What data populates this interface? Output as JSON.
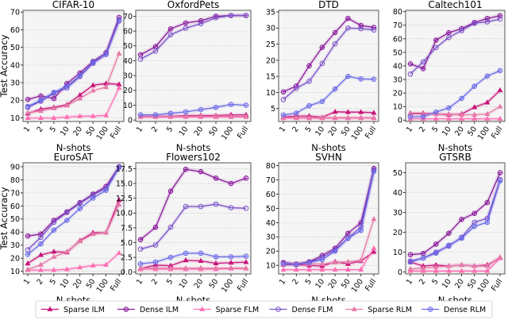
{
  "figure": {
    "xlabel": "N-shots",
    "ylabel": "Test Accuracy",
    "x_categories": [
      "1",
      "2",
      "5",
      "10",
      "20",
      "50",
      "100",
      "Full"
    ]
  },
  "series_style": [
    {
      "name": "Sparse ILM",
      "color": "#c8127a",
      "marker": "triangle"
    },
    {
      "name": "Dense ILM",
      "color": "#8a1a9b",
      "marker": "circle-plus"
    },
    {
      "name": "Sparse FLM",
      "color": "#ff6fb5",
      "marker": "triangle"
    },
    {
      "name": "Dense FLM",
      "color": "#7a4fc9",
      "marker": "circle"
    },
    {
      "name": "Sparse RLM",
      "color": "#e57aa8",
      "marker": "triangle"
    },
    {
      "name": "Dense RLM",
      "color": "#6a6ae8",
      "marker": "circle-plus"
    }
  ],
  "chart_data": [
    {
      "type": "line",
      "title": "CIFAR-10",
      "xlabel": "N-shots",
      "ylabel": "Test Accuracy",
      "ylim": [
        8,
        71
      ],
      "yticks": [
        10,
        20,
        30,
        40,
        50,
        60,
        70
      ],
      "grid": true,
      "categories": [
        "1",
        "2",
        "5",
        "10",
        "20",
        "50",
        "100",
        "Full"
      ],
      "series": [
        {
          "name": "Sparse ILM",
          "values": [
            12.5,
            15,
            16,
            17.5,
            23,
            28.5,
            29.5,
            29
          ]
        },
        {
          "name": "Dense ILM",
          "values": [
            20.5,
            22.5,
            21,
            29.5,
            35.5,
            42,
            47,
            67
          ]
        },
        {
          "name": "Sparse FLM",
          "values": [
            10,
            10,
            10,
            10.5,
            11,
            11,
            11.5,
            27
          ]
        },
        {
          "name": "Dense FLM",
          "values": [
            16,
            19.5,
            24,
            27,
            33.5,
            41,
            46,
            65
          ]
        },
        {
          "name": "Sparse RLM",
          "values": [
            13,
            14,
            15.5,
            17,
            21,
            25.5,
            27.5,
            46.5
          ]
        },
        {
          "name": "Dense RLM",
          "values": [
            16.5,
            20,
            24.5,
            28,
            34,
            41.5,
            46,
            65.5
          ]
        }
      ]
    },
    {
      "type": "line",
      "title": "OxfordPets",
      "xlabel": "N-shots",
      "ylabel": "",
      "ylim": [
        -1,
        74
      ],
      "yticks": [
        0,
        10,
        20,
        30,
        40,
        50,
        60,
        70
      ],
      "grid": true,
      "categories": [
        "1",
        "2",
        "5",
        "10",
        "20",
        "50",
        "100",
        "Full"
      ],
      "series": [
        {
          "name": "Sparse ILM",
          "values": [
            2.5,
            2.5,
            2.5,
            3,
            3,
            3,
            3.5,
            3.5
          ]
        },
        {
          "name": "Dense ILM",
          "values": [
            44,
            49.5,
            61.5,
            65.5,
            67,
            70,
            70.5,
            70.5
          ]
        },
        {
          "name": "Sparse FLM",
          "values": [
            2,
            2,
            2,
            2,
            2,
            2,
            2,
            2
          ]
        },
        {
          "name": "Dense FLM",
          "values": [
            41,
            46.5,
            57.5,
            62,
            65,
            69,
            70.5,
            70.5
          ]
        },
        {
          "name": "Sparse RLM",
          "values": [
            2.5,
            2.5,
            2.5,
            2.5,
            2.5,
            2.5,
            2.5,
            2.5
          ]
        },
        {
          "name": "Dense RLM",
          "values": [
            3.5,
            3.5,
            4.5,
            5.5,
            7,
            8.5,
            10.5,
            10
          ]
        }
      ]
    },
    {
      "type": "line",
      "title": "DTD",
      "xlabel": "N-shots",
      "ylabel": "",
      "ylim": [
        1,
        35.5
      ],
      "yticks": [
        5,
        10,
        15,
        20,
        25,
        30,
        35
      ],
      "grid": true,
      "categories": [
        "1",
        "2",
        "5",
        "10",
        "20",
        "50",
        "100",
        "Full"
      ],
      "series": [
        {
          "name": "Sparse ILM",
          "values": [
            2.4,
            2.7,
            2.7,
            2.3,
            4,
            3.9,
            3.9,
            3.7
          ]
        },
        {
          "name": "Dense ILM",
          "values": [
            10.2,
            12,
            18.3,
            24,
            28.6,
            33,
            30.8,
            30.2
          ]
        },
        {
          "name": "Sparse FLM",
          "values": [
            2,
            2,
            2,
            2,
            2,
            2,
            2,
            2
          ]
        },
        {
          "name": "Dense FLM",
          "values": [
            7.8,
            11.3,
            13.5,
            19,
            25.1,
            30,
            29.8,
            29.4
          ]
        },
        {
          "name": "Sparse RLM",
          "values": [
            2.2,
            2.2,
            2.2,
            2.2,
            2.2,
            2.2,
            2.2,
            2.2
          ]
        },
        {
          "name": "Dense RLM",
          "values": [
            3,
            3.6,
            5.9,
            7.2,
            11.1,
            15,
            14.2,
            14.1
          ]
        }
      ]
    },
    {
      "type": "line",
      "title": "Caltech101",
      "xlabel": "N-shots",
      "ylabel": "",
      "ylim": [
        -1,
        81
      ],
      "yticks": [
        0,
        10,
        20,
        30,
        40,
        50,
        60,
        70,
        80
      ],
      "grid": true,
      "categories": [
        "1",
        "2",
        "5",
        "10",
        "20",
        "50",
        "100",
        "Full"
      ],
      "series": [
        {
          "name": "Sparse ILM",
          "values": [
            5,
            5,
            4.5,
            4,
            4.5,
            9.5,
            13,
            22
          ]
        },
        {
          "name": "Dense ILM",
          "values": [
            41.5,
            38,
            59,
            64.5,
            67.5,
            72,
            75,
            77
          ]
        },
        {
          "name": "Sparse FLM",
          "values": [
            1,
            1,
            1,
            1,
            1,
            1,
            1,
            1
          ]
        },
        {
          "name": "Dense FLM",
          "values": [
            34,
            43,
            53.5,
            61,
            66,
            71.5,
            72.5,
            74.5
          ]
        },
        {
          "name": "Sparse RLM",
          "values": [
            4.5,
            4.5,
            4.5,
            4.5,
            4,
            4,
            4.5,
            10
          ]
        },
        {
          "name": "Dense RLM",
          "values": [
            2.5,
            2.5,
            6,
            9,
            16,
            25,
            32.5,
            36.5
          ]
        }
      ]
    },
    {
      "type": "line",
      "title": "EuroSAT",
      "xlabel": "N-shots",
      "ylabel": "Test Accuracy",
      "ylim": [
        8,
        93
      ],
      "yticks": [
        10,
        20,
        30,
        40,
        50,
        60,
        70,
        80,
        90
      ],
      "grid": true,
      "categories": [
        "1",
        "2",
        "5",
        "10",
        "20",
        "50",
        "100",
        "Full"
      ],
      "series": [
        {
          "name": "Sparse ILM",
          "values": [
            16,
            22.5,
            25,
            24.5,
            33.5,
            39.5,
            39.5,
            64.5
          ]
        },
        {
          "name": "Dense ILM",
          "values": [
            37,
            38.5,
            49,
            55.5,
            62.5,
            69,
            75,
            90
          ]
        },
        {
          "name": "Sparse FLM",
          "values": [
            11,
            11,
            11,
            11.5,
            13,
            14.5,
            15,
            24
          ]
        },
        {
          "name": "Dense FLM",
          "values": [
            26.5,
            36,
            47.5,
            55,
            62,
            68.5,
            73.5,
            89.5
          ]
        },
        {
          "name": "Sparse RLM",
          "values": [
            11.5,
            15,
            21,
            25,
            33,
            38.5,
            39.5,
            61
          ]
        },
        {
          "name": "Dense RLM",
          "values": [
            23,
            31,
            41.5,
            49,
            58,
            66,
            72,
            89.5
          ]
        }
      ]
    },
    {
      "type": "line",
      "title": "Flowers102",
      "xlabel": "N-shots",
      "ylabel": "",
      "ylim": [
        -0.3,
        18.5
      ],
      "yticks": [
        0.0,
        2.5,
        5.0,
        7.5,
        10.0,
        12.5,
        15.0,
        17.5
      ],
      "grid": true,
      "categories": [
        "1",
        "2",
        "5",
        "10",
        "20",
        "50",
        "100",
        "Full"
      ],
      "series": [
        {
          "name": "Sparse ILM",
          "values": [
            0.6,
            1.2,
            1.1,
            2,
            1.9,
            1.5,
            1.6,
            1.7
          ]
        },
        {
          "name": "Dense ILM",
          "values": [
            5.5,
            7.6,
            13.7,
            17.4,
            17,
            15.9,
            15,
            15.9
          ]
        },
        {
          "name": "Sparse FLM",
          "values": [
            0.5,
            0.5,
            0.5,
            0.5,
            0.5,
            0.5,
            0.6,
            0.6
          ]
        },
        {
          "name": "Dense FLM",
          "values": [
            3.9,
            4.6,
            7.6,
            11.1,
            11.1,
            11.5,
            10.9,
            10.8
          ]
        },
        {
          "name": "Sparse RLM",
          "values": [
            0.7,
            0.7,
            0.7,
            0.7,
            0.7,
            0.7,
            0.7,
            0.7
          ]
        },
        {
          "name": "Dense RLM",
          "values": [
            1.4,
            1.7,
            2.5,
            3.2,
            3.2,
            2.6,
            2.6,
            2.7
          ]
        }
      ]
    },
    {
      "type": "line",
      "title": "SVHN",
      "xlabel": "N-shots",
      "ylabel": "",
      "ylim": [
        4,
        82
      ],
      "yticks": [
        10,
        20,
        30,
        40,
        50,
        60,
        70,
        80
      ],
      "grid": true,
      "categories": [
        "1",
        "2",
        "5",
        "10",
        "20",
        "50",
        "100",
        "Full"
      ],
      "series": [
        {
          "name": "Sparse ILM",
          "values": [
            10.5,
            10.5,
            10,
            9.5,
            12.5,
            11,
            13,
            19.5
          ]
        },
        {
          "name": "Dense ILM",
          "values": [
            12,
            11,
            12.5,
            17,
            22,
            32.5,
            40,
            78
          ]
        },
        {
          "name": "Sparse FLM",
          "values": [
            7,
            7,
            7,
            7,
            7,
            7,
            7,
            22
          ]
        },
        {
          "name": "Dense FLM",
          "values": [
            11.5,
            11,
            12,
            15.5,
            21,
            29,
            37,
            77
          ]
        },
        {
          "name": "Sparse RLM",
          "values": [
            11,
            11,
            11,
            11,
            12,
            12.5,
            13.5,
            42.5
          ]
        },
        {
          "name": "Dense RLM",
          "values": [
            11,
            10.5,
            12,
            14,
            20,
            29,
            34.5,
            76
          ]
        }
      ]
    },
    {
      "type": "line",
      "title": "GTSRB",
      "xlabel": "N-shots",
      "ylabel": "",
      "ylim": [
        -1,
        55
      ],
      "yticks": [
        0,
        10,
        20,
        30,
        40,
        50
      ],
      "grid": true,
      "categories": [
        "1",
        "2",
        "5",
        "10",
        "20",
        "50",
        "100",
        "Full"
      ],
      "series": [
        {
          "name": "Sparse ILM",
          "values": [
            5,
            3,
            3.5,
            3,
            3.5,
            3,
            3.5,
            7
          ]
        },
        {
          "name": "Dense ILM",
          "values": [
            8.7,
            9.3,
            14,
            19.5,
            26.5,
            29.5,
            35,
            50
          ]
        },
        {
          "name": "Sparse FLM",
          "values": [
            0.5,
            0.5,
            0.5,
            0.5,
            0.5,
            0.5,
            0.5,
            7
          ]
        },
        {
          "name": "Dense FLM",
          "values": [
            5.5,
            7,
            10,
            13,
            17.5,
            25,
            27,
            46.5
          ]
        },
        {
          "name": "Sparse RLM",
          "values": [
            1.5,
            2,
            2.5,
            3,
            3.5,
            3,
            3,
            7.5
          ]
        },
        {
          "name": "Dense RLM",
          "values": [
            5,
            7,
            9.5,
            13.5,
            17,
            23,
            25,
            46
          ]
        }
      ]
    }
  ],
  "legend": {
    "placement": "bottom-center",
    "entries": [
      "Sparse ILM",
      "Dense ILM",
      "Sparse FLM",
      "Dense FLM",
      "Sparse RLM",
      "Dense RLM"
    ]
  }
}
